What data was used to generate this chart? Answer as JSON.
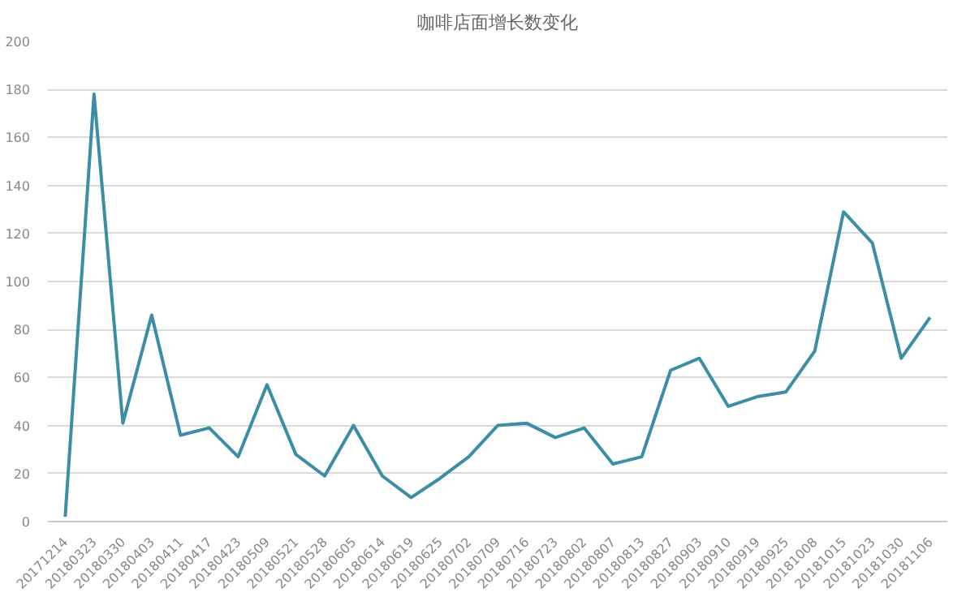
{
  "chart_data": {
    "type": "line",
    "title": "咖啡店面增长数变化",
    "categories": [
      "20171214",
      "20180323",
      "20180330",
      "20180403",
      "20180411",
      "20180417",
      "20180423",
      "20180509",
      "20180521",
      "20180528",
      "20180605",
      "20180614",
      "20180619",
      "20180625",
      "20180702",
      "20180709",
      "20180716",
      "20180723",
      "20180802",
      "20180807",
      "20180813",
      "20180827",
      "20180903",
      "20180910",
      "20180919",
      "20180925",
      "20181008",
      "20181015",
      "20181023",
      "20181030",
      "20181106"
    ],
    "series": [
      {
        "color": "#3b8ea5",
        "values": [
          2,
          178,
          41,
          86,
          36,
          39,
          27,
          57,
          28,
          19,
          40,
          19,
          10,
          18,
          27,
          40,
          41,
          35,
          39,
          24,
          27,
          63,
          68,
          48,
          52,
          54,
          71,
          129,
          116,
          68,
          85
        ]
      }
    ],
    "ylim": [
      0,
      200
    ],
    "yticks": [
      0,
      20,
      40,
      60,
      80,
      100,
      120,
      140,
      160,
      180,
      200
    ],
    "grid": "y",
    "marker": "none",
    "line_style": "solid"
  }
}
